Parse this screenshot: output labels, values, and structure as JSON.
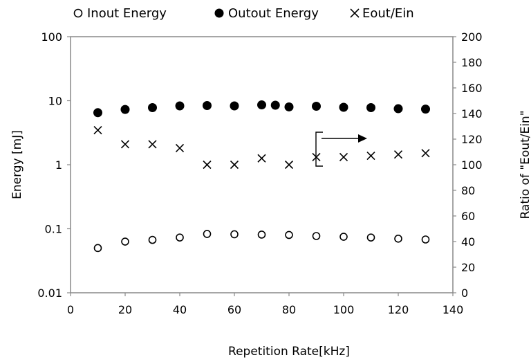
{
  "chart_data": {
    "type": "scatter",
    "xlabel": "Repetition Rate[kHz]",
    "ylabel": "Energy [mJ]",
    "y2label": "Ratio of \"Eout/Ein\"",
    "xlim": [
      0,
      140
    ],
    "ylim": [
      0.01,
      100
    ],
    "y_scale": "log",
    "y2lim": [
      0,
      200
    ],
    "x_ticks": [
      "0",
      "20",
      "40",
      "60",
      "80",
      "100",
      "120",
      "140"
    ],
    "y_ticks": [
      "0.01",
      "0.1",
      "1",
      "10",
      "100"
    ],
    "y2_ticks": [
      "0",
      "20",
      "40",
      "60",
      "80",
      "100",
      "120",
      "140",
      "160",
      "180",
      "200"
    ],
    "grid": false,
    "legend_position": "top",
    "series": [
      {
        "name": "Inout Energy",
        "axis": "left",
        "marker": "open-circle",
        "x": [
          10,
          20,
          30,
          40,
          50,
          60,
          70,
          80,
          90,
          100,
          110,
          120,
          130
        ],
        "y": [
          0.05,
          0.063,
          0.067,
          0.073,
          0.083,
          0.082,
          0.081,
          0.08,
          0.077,
          0.075,
          0.073,
          0.07,
          0.068
        ]
      },
      {
        "name": "Outout Energy",
        "axis": "left",
        "marker": "filled-circle",
        "x": [
          10,
          20,
          30,
          40,
          50,
          60,
          70,
          75,
          80,
          90,
          100,
          110,
          120,
          130
        ],
        "y": [
          6.5,
          7.3,
          7.8,
          8.3,
          8.4,
          8.3,
          8.6,
          8.5,
          8.0,
          8.2,
          7.9,
          7.8,
          7.5,
          7.4
        ]
      },
      {
        "name": "Eout/Ein",
        "axis": "right",
        "marker": "x",
        "x": [
          10,
          20,
          30,
          40,
          50,
          60,
          70,
          80,
          90,
          100,
          110,
          120,
          130
        ],
        "y": [
          127,
          116,
          116,
          113,
          100,
          100,
          105,
          100,
          106,
          106,
          107,
          108,
          109
        ]
      }
    ],
    "annotation": "arrow pointing right toward Eout/Ein axis"
  }
}
